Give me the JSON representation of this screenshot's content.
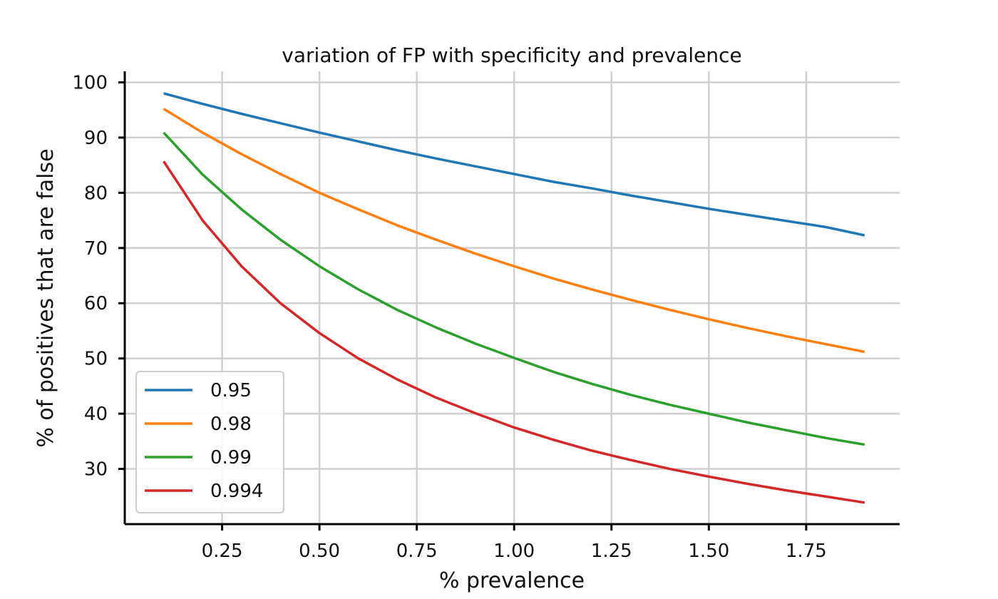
{
  "chart_data": {
    "type": "line",
    "title": "variation of FP with specificity and prevalence",
    "xlabel": "% prevalence",
    "ylabel": "% of positives that are false",
    "xlim": [
      0.0,
      1.99
    ],
    "ylim": [
      20.0,
      102.0
    ],
    "xticks": [
      0.25,
      0.5,
      0.75,
      1.0,
      1.25,
      1.5,
      1.75
    ],
    "xtick_labels": [
      "0.25",
      "0.50",
      "0.75",
      "1.00",
      "1.25",
      "1.50",
      "1.75"
    ],
    "yticks": [
      30,
      40,
      50,
      60,
      70,
      80,
      90,
      100
    ],
    "ytick_labels": [
      "30",
      "40",
      "50",
      "60",
      "70",
      "80",
      "90",
      "100"
    ],
    "grid": true,
    "legend_position": "lower-left",
    "x": [
      0.1,
      0.2,
      0.3,
      0.4,
      0.5,
      0.6,
      0.7,
      0.8,
      0.9,
      1.0,
      1.1,
      1.2,
      1.3,
      1.4,
      1.5,
      1.6,
      1.7,
      1.8,
      1.9
    ],
    "series": [
      {
        "name": "0.95",
        "color": "#1f77b4",
        "values": [
          98.0,
          96.1,
          94.3,
          92.6,
          90.9,
          89.3,
          87.7,
          86.2,
          84.8,
          83.4,
          82.0,
          80.8,
          79.5,
          78.3,
          77.1,
          76.0,
          74.9,
          73.8,
          72.3
        ]
      },
      {
        "name": "0.98",
        "color": "#ff7f0e",
        "values": [
          95.2,
          90.9,
          87.0,
          83.4,
          80.0,
          77.0,
          74.1,
          71.5,
          69.0,
          66.7,
          64.5,
          62.5,
          60.6,
          58.8,
          57.1,
          55.5,
          54.0,
          52.6,
          51.2
        ]
      },
      {
        "name": "0.99",
        "color": "#2ca02c",
        "values": [
          90.9,
          83.3,
          77.0,
          71.5,
          66.7,
          62.5,
          58.8,
          55.6,
          52.7,
          50.1,
          47.6,
          45.4,
          43.4,
          41.6,
          40.0,
          38.4,
          37.0,
          35.6,
          34.4
        ]
      },
      {
        "name": "0.994",
        "color": "#d62728",
        "values": [
          85.7,
          75.0,
          66.7,
          60.0,
          54.6,
          50.0,
          46.2,
          42.9,
          40.1,
          37.5,
          35.3,
          33.3,
          31.6,
          30.0,
          28.6,
          27.3,
          26.1,
          25.0,
          23.9
        ]
      }
    ]
  }
}
